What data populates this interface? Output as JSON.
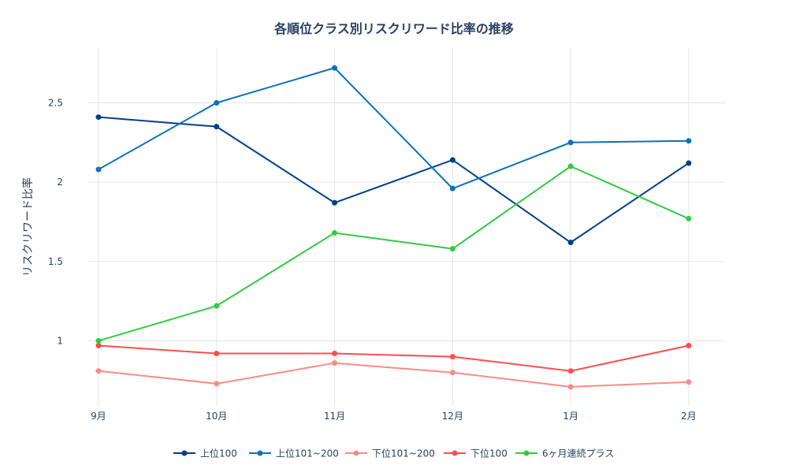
{
  "chart_data": {
    "type": "line",
    "title": "各順位クラス別リスクリワード比率の推移",
    "xlabel": "",
    "ylabel": "リスクリワード比率",
    "categories": [
      "9月",
      "10月",
      "11月",
      "12月",
      "1月",
      "2月"
    ],
    "yticks": [
      1,
      1.5,
      2,
      2.5
    ],
    "ytick_labels": [
      "1",
      "1.5",
      "2",
      "2.5"
    ],
    "ylim": [
      0.59,
      2.85
    ],
    "grid": true,
    "legend_position": "bottom",
    "series": [
      {
        "name": "上位100",
        "color": "#003f88",
        "values": [
          2.41,
          2.35,
          1.87,
          2.14,
          1.62,
          2.12
        ]
      },
      {
        "name": "上位101~200",
        "color": "#0a72ba",
        "values": [
          2.08,
          2.5,
          2.72,
          1.96,
          2.25,
          2.26
        ]
      },
      {
        "name": "下位101~200",
        "color": "#fa8c84",
        "values": [
          0.81,
          0.73,
          0.86,
          0.8,
          0.71,
          0.74
        ]
      },
      {
        "name": "下位100",
        "color": "#ff4d4d",
        "values": [
          0.97,
          0.92,
          0.92,
          0.9,
          0.81,
          0.97
        ]
      },
      {
        "name": "6ヶ月連続プラス",
        "color": "#2ecc40",
        "values": [
          1.0,
          1.22,
          1.68,
          1.58,
          2.1,
          1.77
        ]
      }
    ]
  }
}
